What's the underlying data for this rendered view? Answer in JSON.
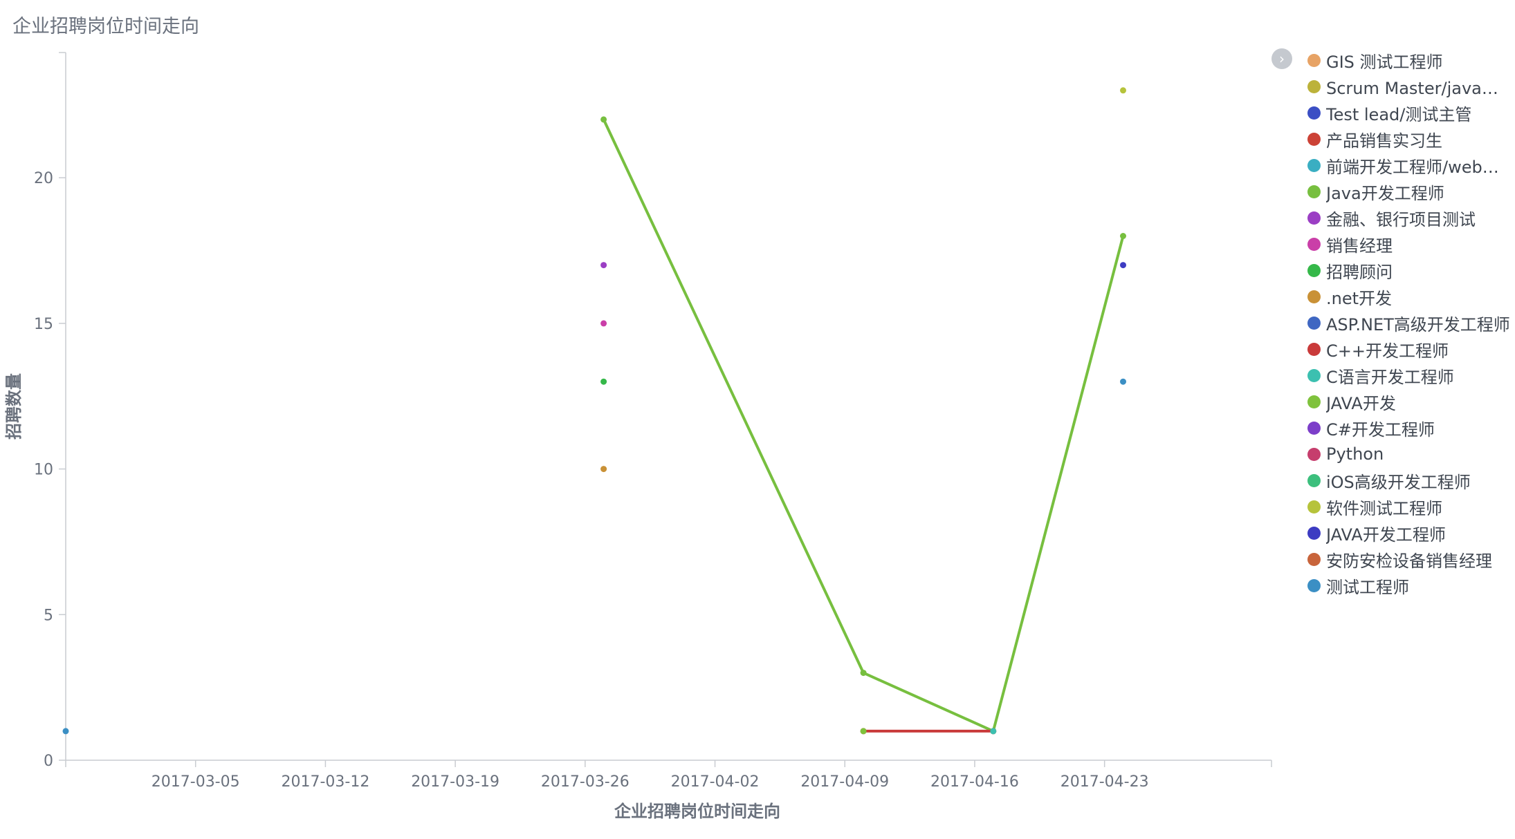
{
  "panel": {
    "title": "企业招聘岗位时间走向"
  },
  "legend": {
    "toggle_icon": "chevron-right-icon",
    "items": [
      {
        "label": "GIS 测试工程师",
        "color": "#e7a365"
      },
      {
        "label": "Scrum Master/java开发",
        "color": "#bcb23a"
      },
      {
        "label": "Test lead/测试主管",
        "color": "#3b4fc4"
      },
      {
        "label": "产品销售实习生",
        "color": "#cc4236"
      },
      {
        "label": "前端开发工程师/web前端开发",
        "color": "#3aaec2"
      },
      {
        "label": "Java开发工程师",
        "color": "#77bf3f"
      },
      {
        "label": "金融、银行项目测试",
        "color": "#9b3ec4"
      },
      {
        "label": "销售经理",
        "color": "#ca3fa8"
      },
      {
        "label": "招聘顾问",
        "color": "#35b849"
      },
      {
        "label": ".net开发",
        "color": "#c99136"
      },
      {
        "label": "ASP.NET高级开发工程师",
        "color": "#3f67c2"
      },
      {
        "label": "C++开发工程师",
        "color": "#c93a3a"
      },
      {
        "label": "C语言开发工程师",
        "color": "#3cc0b0"
      },
      {
        "label": "JAVA开发",
        "color": "#7fc23c"
      },
      {
        "label": "C#开发工程师",
        "color": "#7c3ec9"
      },
      {
        "label": "Python",
        "color": "#c63e6d"
      },
      {
        "label": "iOS高级开发工程师",
        "color": "#3cbf7d"
      },
      {
        "label": "软件测试工程师",
        "color": "#b6c33b"
      },
      {
        "label": "JAVA开发工程师",
        "color": "#3d3cc2"
      },
      {
        "label": "安防安检设备销售经理",
        "color": "#c8643b"
      },
      {
        "label": "测试工程师",
        "color": "#3b8fc4"
      }
    ]
  },
  "chart_data": {
    "type": "line",
    "title": "企业招聘岗位时间走向",
    "xlabel": "企业招聘岗位时间走向",
    "ylabel": "招聘数量",
    "x_range": [
      "2017-02-26",
      "2017-05-02"
    ],
    "ylim": [
      0,
      24.3
    ],
    "x_ticks": [
      "2017-03-05",
      "2017-03-12",
      "2017-03-19",
      "2017-03-26",
      "2017-04-02",
      "2017-04-09",
      "2017-04-16",
      "2017-04-23"
    ],
    "y_ticks": [
      0,
      5,
      10,
      15,
      20
    ],
    "grid": false,
    "legend_position": "right",
    "series": [
      {
        "name": "Java开发工程师",
        "color": "#77bf3f",
        "line": true,
        "points": [
          [
            "2017-03-27",
            22
          ],
          [
            "2017-04-10",
            3
          ],
          [
            "2017-04-17",
            1
          ],
          [
            "2017-04-24",
            18
          ]
        ]
      },
      {
        "name": "C++开发工程师",
        "color": "#c93a3a",
        "line": true,
        "points": [
          [
            "2017-04-10",
            1
          ],
          [
            "2017-04-17",
            1
          ]
        ]
      },
      {
        "name": "JAVA开发",
        "color": "#7fc23c",
        "line": false,
        "points": [
          [
            "2017-04-10",
            1
          ]
        ]
      },
      {
        "name": "C语言开发工程师",
        "color": "#3cc0b0",
        "line": false,
        "points": [
          [
            "2017-04-17",
            1
          ]
        ]
      },
      {
        "name": "金融、银行项目测试",
        "color": "#9b3ec4",
        "line": false,
        "points": [
          [
            "2017-03-27",
            17
          ]
        ]
      },
      {
        "name": "销售经理",
        "color": "#ca3fa8",
        "line": false,
        "points": [
          [
            "2017-03-27",
            15
          ]
        ]
      },
      {
        "name": "招聘顾问",
        "color": "#35b849",
        "line": false,
        "points": [
          [
            "2017-03-27",
            13
          ]
        ]
      },
      {
        "name": ".net开发",
        "color": "#c99136",
        "line": false,
        "points": [
          [
            "2017-03-27",
            10
          ]
        ]
      },
      {
        "name": "软件测试工程师",
        "color": "#b6c33b",
        "line": false,
        "points": [
          [
            "2017-04-24",
            23
          ]
        ]
      },
      {
        "name": "JAVA开发工程师",
        "color": "#3d3cc2",
        "line": false,
        "points": [
          [
            "2017-04-24",
            17
          ]
        ]
      },
      {
        "name": "测试工程师",
        "color": "#3b8fc4",
        "line": false,
        "points": [
          [
            "2017-04-24",
            13
          ],
          [
            "2017-02-26",
            1
          ]
        ]
      }
    ]
  }
}
